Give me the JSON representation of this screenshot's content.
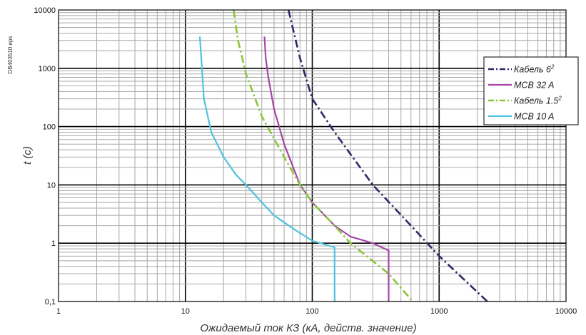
{
  "side_code": "DB403510.eps",
  "chart_data": {
    "type": "line",
    "xscale": "log",
    "yscale": "log",
    "xlim": [
      1,
      10000
    ],
    "ylim": [
      0.1,
      10000
    ],
    "xlabel": "Ожидаемый ток КЗ (кА, действ. значение)",
    "ylabel": "t (c)",
    "x_ticks": [
      {
        "value": 1,
        "label": "1"
      },
      {
        "value": 10,
        "label": "10"
      },
      {
        "value": 100,
        "label": "100"
      },
      {
        "value": 1000,
        "label": "1000"
      },
      {
        "value": 10000,
        "label": "10000"
      }
    ],
    "y_ticks": [
      {
        "value": 0.1,
        "label": "0,1"
      },
      {
        "value": 1,
        "label": "1"
      },
      {
        "value": 10,
        "label": "10"
      },
      {
        "value": 100,
        "label": "100"
      },
      {
        "value": 1000,
        "label": "1000"
      },
      {
        "value": 10000,
        "label": "10000"
      }
    ],
    "grid": true,
    "legend_position": "right",
    "series": [
      {
        "name": "Кабель 6²",
        "label_main": "Кабель 6",
        "label_sup": "2",
        "color": "#2b2a6b",
        "dash": "dashdot",
        "x": [
          65,
          70,
          80,
          100,
          150,
          300,
          600,
          1000,
          2400
        ],
        "y": [
          10000,
          5000,
          1500,
          300,
          80,
          10,
          2,
          0.6,
          0.1
        ]
      },
      {
        "name": "MCB 32 A",
        "label_main": "MCB 32 A",
        "label_sup": "",
        "color": "#a645a6",
        "dash": "solid",
        "x": [
          42,
          43,
          45,
          50,
          60,
          80,
          100,
          150,
          200,
          300,
          400,
          400,
          400
        ],
        "y": [
          3500,
          1500,
          700,
          200,
          50,
          10,
          5,
          2,
          1.3,
          1,
          0.75,
          0.75,
          0.1
        ]
      },
      {
        "name": "Кабель 1.5²",
        "label_main": "Кабель 1.5",
        "label_sup": "2",
        "color": "#8ac63a",
        "dash": "dashdot",
        "x": [
          24,
          26,
          30,
          40,
          60,
          80,
          100,
          150,
          200,
          400,
          620
        ],
        "y": [
          10000,
          3000,
          800,
          150,
          30,
          10,
          5,
          2,
          1,
          0.3,
          0.1
        ]
      },
      {
        "name": "MCB 10 A",
        "label_main": "MCB 10 A",
        "label_sup": "",
        "color": "#4fc3dd",
        "dash": "solid",
        "x": [
          13,
          13.5,
          14,
          16,
          20,
          25,
          30,
          40,
          50,
          70,
          100,
          150,
          150
        ],
        "y": [
          3500,
          1000,
          300,
          80,
          30,
          15,
          10,
          5,
          3,
          1.8,
          1.1,
          0.85,
          0.1
        ]
      }
    ]
  }
}
